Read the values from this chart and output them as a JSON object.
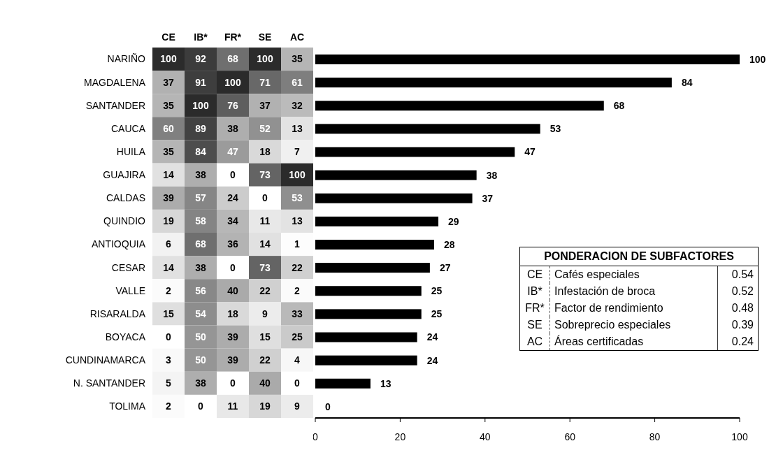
{
  "chart_data": [
    {
      "type": "heatmap",
      "categories": [
        "CE",
        "IB*",
        "FR*",
        "SE",
        "AC"
      ],
      "y_categories": [
        "NARIÑO",
        "MAGDALENA",
        "SANTANDER",
        "CAUCA",
        "HUILA",
        "GUAJIRA",
        "CALDAS",
        "QUINDIO",
        "ANTIOQUIA",
        "CESAR",
        "VALLE",
        "RISARALDA",
        "BOYACA",
        "CUNDINAMARCA",
        "N. SANTANDER",
        "TOLIMA"
      ],
      "color": "#2b2b2b",
      "data_labels": true,
      "cells": [
        [
          100,
          92,
          68,
          100,
          35
        ],
        [
          37,
          91,
          100,
          71,
          61
        ],
        [
          35,
          100,
          76,
          37,
          32
        ],
        [
          60,
          89,
          38,
          52,
          13
        ],
        [
          35,
          84,
          47,
          18,
          7
        ],
        [
          14,
          38,
          0,
          73,
          100
        ],
        [
          39,
          57,
          24,
          0,
          53
        ],
        [
          19,
          58,
          34,
          11,
          13
        ],
        [
          6,
          68,
          36,
          14,
          1
        ],
        [
          14,
          38,
          0,
          73,
          22
        ],
        [
          2,
          56,
          40,
          22,
          2
        ],
        [
          15,
          54,
          18,
          9,
          33
        ],
        [
          0,
          50,
          39,
          15,
          25
        ],
        [
          3,
          50,
          39,
          22,
          4
        ],
        [
          5,
          38,
          0,
          40,
          0
        ],
        [
          2,
          0,
          11,
          19,
          9
        ]
      ]
    },
    {
      "type": "bar",
      "orientation": "horizontal",
      "categories": [
        null,
        null,
        null,
        null,
        null,
        null,
        null,
        null,
        null,
        null,
        null,
        null,
        null,
        null,
        null,
        null
      ],
      "values": [
        100,
        84,
        68,
        53,
        47,
        38,
        37,
        29,
        28,
        27,
        25,
        25,
        24,
        24,
        13,
        0
      ],
      "color": "#000000",
      "xlim": [
        0,
        100
      ],
      "xticks": [
        0,
        20,
        40,
        60,
        80,
        100
      ],
      "data_labels": true,
      "grid": false
    },
    {
      "type": "other",
      "title": "PONDERACION DE SUBFACTORES",
      "categories": [
        "CE",
        "IB*",
        "FR*",
        "SE",
        "AC"
      ],
      "annotations": [
        "Cafés especiales",
        "Infestación de broca",
        "Factor de rendimiento",
        "Sobreprecio especiales",
        "Áreas certificadas"
      ],
      "values": [
        0.54,
        0.52,
        0.48,
        0.39,
        0.24
      ],
      "data_labels": true
    }
  ]
}
